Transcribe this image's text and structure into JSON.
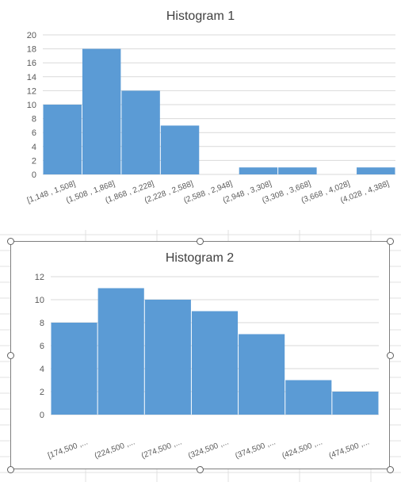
{
  "chart_data": [
    {
      "type": "bar",
      "title": "Histogram 1",
      "categories": [
        "[1,148 , 1,508]",
        "(1,508 , 1,868]",
        "(1,868 , 2,228]",
        "(2,228 , 2,588]",
        "(2,588 , 2,948]",
        "(2,948 , 3,308]",
        "(3,308 , 3,668]",
        "(3,668 , 4,028]",
        "(4,028 , 4,388]"
      ],
      "values": [
        10,
        18,
        12,
        7,
        0,
        1,
        1,
        0,
        1
      ],
      "yticks": [
        "0",
        "2",
        "4",
        "6",
        "8",
        "10",
        "12",
        "14",
        "16",
        "18",
        "20"
      ],
      "ylim": [
        0,
        20
      ],
      "grid": true,
      "bar_color": "#5b9bd5"
    },
    {
      "type": "bar",
      "title": "Histogram 2",
      "categories": [
        "[174,500 ,...",
        "(224,500 ,...",
        "(274,500 ,...",
        "(324,500 ,...",
        "(374,500 ,...",
        "(424,500 ,...",
        "(474,500 ,..."
      ],
      "values": [
        8,
        11,
        10,
        9,
        7,
        3,
        2
      ],
      "yticks": [
        "0",
        "2",
        "4",
        "6",
        "8",
        "10",
        "12"
      ],
      "ylim": [
        0,
        12
      ],
      "grid": true,
      "bar_color": "#5b9bd5"
    }
  ],
  "colors": {
    "bar": "#5b9bd5",
    "gridline": "#d9d9d9",
    "axis_text": "#595959",
    "title": "#404040",
    "sheet_grid": "#e1e1e1"
  }
}
